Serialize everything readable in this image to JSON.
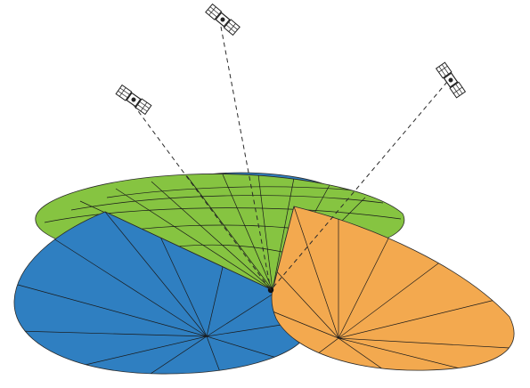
{
  "colors": {
    "sphere_blue": "#2f7fc1",
    "sphere_green": "#86c441",
    "sphere_orange": "#f3a94f",
    "background": "#ffffff",
    "lines": "#1a1a1a"
  },
  "satellites": [
    {
      "name": "satellite-left",
      "icon": "satellite-icon"
    },
    {
      "name": "satellite-center",
      "icon": "satellite-icon"
    },
    {
      "name": "satellite-right",
      "icon": "satellite-icon"
    }
  ],
  "spheres": [
    {
      "name": "position-sphere-green"
    },
    {
      "name": "position-sphere-blue"
    },
    {
      "name": "position-sphere-orange"
    }
  ]
}
